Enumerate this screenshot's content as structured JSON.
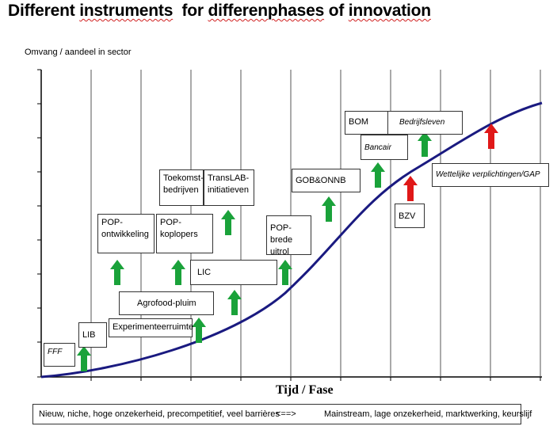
{
  "title": {
    "prefix": "Different ",
    "word1": "instruments",
    "mid": "  for ",
    "word2": "differenphases",
    "mid2": " of ",
    "word3": "innovation"
  },
  "y_axis_label": "Omvang / aandeel in sector",
  "x_axis_label": "Tijd / Fase",
  "instruments": {
    "fff": "FFF",
    "lib": "LIB",
    "experimenteerruimte": "Experimenteerruimte",
    "agrofood_pluim": "Agrofood-pluim",
    "pop_ontwikkeling": "POP-\nontwikkeling",
    "pop_koplopers": "POP-\nkoplopers",
    "toekomstbedrijven": "Toekomst-\nbedrijven",
    "translab": "TransLAB-\ninitiatieven",
    "lic": "LIC",
    "pop_brede_uitrol": "POP-brede\nuitrol",
    "gob_onnb": "GOB&ONNB",
    "bom": "BOM",
    "bedrijfsleven": "Bedrijfsleven",
    "bancair": "Bancair",
    "bzv": "BZV",
    "wettelijke": "Wettelijke verplichtingen/GAP"
  },
  "bottom_bar": {
    "left": "Nieuw, niche, hoge onzekerheid, precompetitief, veel barrières",
    "arrow": "<==>",
    "right": "Mainstream, lage onzekerheid, marktwerking, keurslijf"
  },
  "colors": {
    "curve": "#1a1a80",
    "green_arrow": "#1aa23a",
    "red_arrow": "#e01818",
    "axis": "#000000",
    "grid": "#555555"
  }
}
